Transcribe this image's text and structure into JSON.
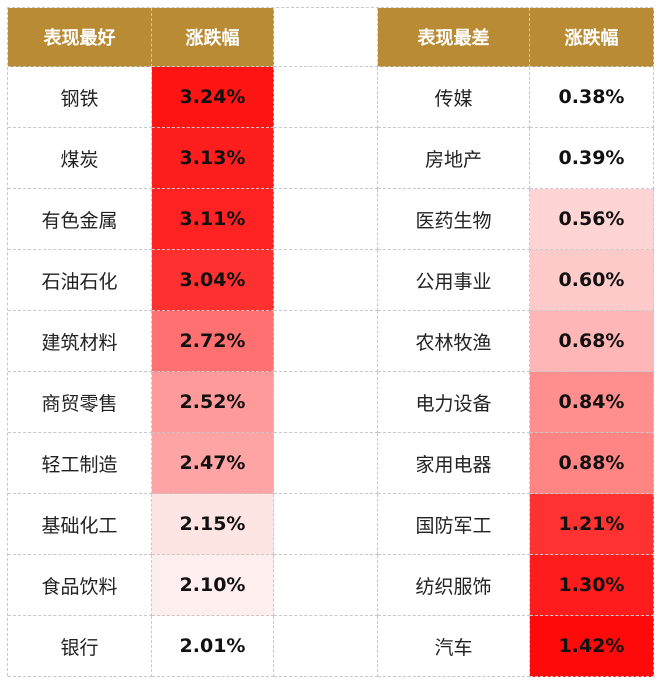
{
  "header": {
    "best": "表现最好",
    "best_change": "涨跌幅",
    "worst": "表现最差",
    "worst_change": "涨跌幅"
  },
  "rows": [
    {
      "best": "钢铁",
      "best_change": "3.24%",
      "best_color": "#ff1414",
      "worst": "传媒",
      "worst_change": "0.38%",
      "worst_color": "#ffffff"
    },
    {
      "best": "煤炭",
      "best_change": "3.13%",
      "best_color": "#ff1e1e",
      "worst": "房地产",
      "worst_change": "0.39%",
      "worst_color": "#ffffff"
    },
    {
      "best": "有色金属",
      "best_change": "3.11%",
      "best_color": "#ff2222",
      "worst": "医药生物",
      "worst_change": "0.56%",
      "worst_color": "#ffd4d4"
    },
    {
      "best": "石油石化",
      "best_change": "3.04%",
      "best_color": "#ff3030",
      "worst": "公用事业",
      "worst_change": "0.60%",
      "worst_color": "#ffcaca"
    },
    {
      "best": "建筑材料",
      "best_change": "2.72%",
      "best_color": "#ff7070",
      "worst": "农林牧渔",
      "worst_change": "0.68%",
      "worst_color": "#ffb6b6"
    },
    {
      "best": "商贸零售",
      "best_change": "2.52%",
      "best_color": "#ff9a9a",
      "worst": "电力设备",
      "worst_change": "0.84%",
      "worst_color": "#ff8e8e"
    },
    {
      "best": "轻工制造",
      "best_change": "2.47%",
      "best_color": "#ffa4a4",
      "worst": "家用电器",
      "worst_change": "0.88%",
      "worst_color": "#ff8484"
    },
    {
      "best": "基础化工",
      "best_change": "2.15%",
      "best_color": "#ffe4e4",
      "worst": "国防军工",
      "worst_change": "1.21%",
      "worst_color": "#ff3232"
    },
    {
      "best": "食品饮料",
      "best_change": "2.10%",
      "best_color": "#ffeeee",
      "worst": "纺织服饰",
      "worst_change": "1.30%",
      "worst_color": "#ff1c1c"
    },
    {
      "best": "银行",
      "best_change": "2.01%",
      "best_color": "#ffffff",
      "worst": "汽车",
      "worst_change": "1.42%",
      "worst_color": "#ff0a0a"
    }
  ]
}
